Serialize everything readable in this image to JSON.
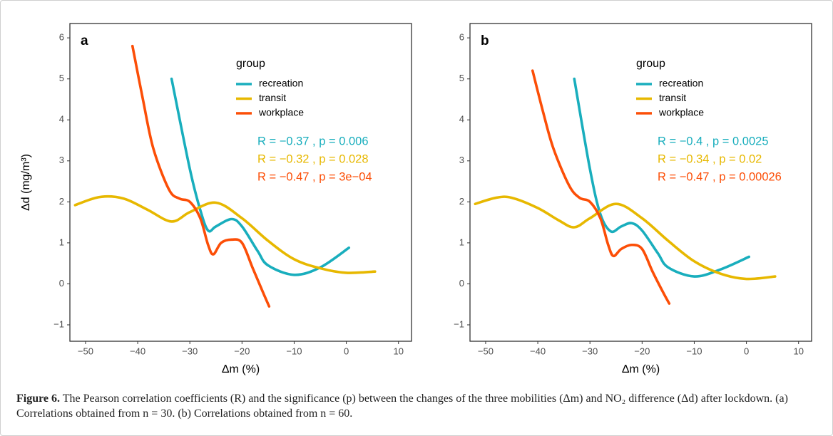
{
  "chart_data": [
    {
      "type": "line",
      "panel_label": "a",
      "x_label": "Δm (%)",
      "y_label": "Δd (mg/m³)",
      "legend_title": "group",
      "xlim": [
        -53,
        12.5
      ],
      "ylim": [
        -1.4,
        6.35
      ],
      "xticks": [
        {
          "value": -50,
          "label": "−50"
        },
        {
          "value": -40,
          "label": "−40"
        },
        {
          "value": -30,
          "label": "−30"
        },
        {
          "value": -20,
          "label": "−20"
        },
        {
          "value": -10,
          "label": "−10"
        },
        0,
        10
      ],
      "yticks": [
        {
          "value": -1,
          "label": "−1"
        },
        0,
        1,
        2,
        3,
        4,
        5,
        6
      ],
      "grid": false,
      "series": [
        {
          "name": "recreation",
          "color": "#19aebd",
          "x": [
            -33.5,
            -30,
            -28,
            -26.5,
            -25,
            -22,
            -20,
            -17,
            -15,
            -10,
            -5,
            0.5
          ],
          "values": [
            5.0,
            2.8,
            1.8,
            1.3,
            1.4,
            1.58,
            1.4,
            0.8,
            0.45,
            0.22,
            0.4,
            0.88
          ]
        },
        {
          "name": "transit",
          "color": "#e7b800",
          "x": [
            -52,
            -48,
            -45,
            -42,
            -38,
            -33.5,
            -30,
            -25,
            -20,
            -15,
            -10,
            -5,
            0,
            5.5
          ],
          "values": [
            1.92,
            2.1,
            2.13,
            2.05,
            1.8,
            1.52,
            1.75,
            1.98,
            1.6,
            1.05,
            0.6,
            0.38,
            0.27,
            0.3
          ]
        },
        {
          "name": "workplace",
          "color": "#fc4e07",
          "x": [
            -41,
            -39,
            -37,
            -34,
            -32,
            -30,
            -28,
            -26.5,
            -25.5,
            -24,
            -22,
            -20,
            -18,
            -16,
            -14.8
          ],
          "values": [
            5.8,
            4.5,
            3.3,
            2.3,
            2.08,
            2.0,
            1.6,
            0.95,
            0.72,
            1.0,
            1.08,
            1.0,
            0.4,
            -0.2,
            -0.55
          ]
        }
      ],
      "annotations": [
        {
          "text": "R = −0.37 , p = 0.006",
          "color": "#19aebd"
        },
        {
          "text": "R = −0.32 , p = 0.028",
          "color": "#e7b800"
        },
        {
          "text": "R = −0.47 , p = 3e−04",
          "color": "#fc4e07"
        }
      ]
    },
    {
      "type": "line",
      "panel_label": "b",
      "x_label": "Δm (%)",
      "legend_title": "group",
      "xlim": [
        -53,
        12.5
      ],
      "ylim": [
        -1.4,
        6.35
      ],
      "xticks": [
        {
          "value": -50,
          "label": "−50"
        },
        {
          "value": -40,
          "label": "−40"
        },
        {
          "value": -30,
          "label": "−30"
        },
        {
          "value": -20,
          "label": "−20"
        },
        {
          "value": -10,
          "label": "−10"
        },
        0,
        10
      ],
      "yticks": [
        {
          "value": -1,
          "label": "−1"
        },
        0,
        1,
        2,
        3,
        4,
        5,
        6
      ],
      "grid": false,
      "series": [
        {
          "name": "recreation",
          "color": "#19aebd",
          "x": [
            -33,
            -30,
            -28,
            -26,
            -24,
            -22,
            -20,
            -17,
            -15,
            -10,
            -5,
            0.5
          ],
          "values": [
            5.0,
            2.8,
            1.7,
            1.28,
            1.4,
            1.48,
            1.3,
            0.75,
            0.4,
            0.18,
            0.35,
            0.66
          ]
        },
        {
          "name": "transit",
          "color": "#e7b800",
          "x": [
            -52,
            -48,
            -45,
            -40,
            -36,
            -33,
            -30,
            -25,
            -20,
            -15,
            -10,
            -5,
            0,
            5.5
          ],
          "values": [
            1.95,
            2.1,
            2.1,
            1.85,
            1.55,
            1.38,
            1.6,
            1.95,
            1.6,
            1.05,
            0.55,
            0.25,
            0.12,
            0.18
          ]
        },
        {
          "name": "workplace",
          "color": "#fc4e07",
          "x": [
            -41,
            -39,
            -37,
            -34,
            -32,
            -30,
            -28,
            -26.5,
            -25.5,
            -24,
            -22,
            -20,
            -18,
            -16,
            -14.8
          ],
          "values": [
            5.2,
            4.2,
            3.3,
            2.4,
            2.1,
            2.0,
            1.6,
            0.95,
            0.68,
            0.85,
            0.95,
            0.85,
            0.3,
            -0.2,
            -0.48
          ]
        }
      ],
      "annotations": [
        {
          "text": "R = −0.4 , p = 0.0025",
          "color": "#19aebd"
        },
        {
          "text": "R = −0.34 , p = 0.02",
          "color": "#e7b800"
        },
        {
          "text": "R = −0.47 , p = 0.00026",
          "color": "#fc4e07"
        }
      ]
    }
  ],
  "caption": {
    "label": "Figure 6.",
    "text": "The Pearson correlation coefficients (R) and the significance (p) between the changes of the three mobilities (Δm) and NO₂ difference (Δd) after lockdown. (a) Correlations obtained from n = 30. (b) Correlations obtained from n = 60."
  }
}
